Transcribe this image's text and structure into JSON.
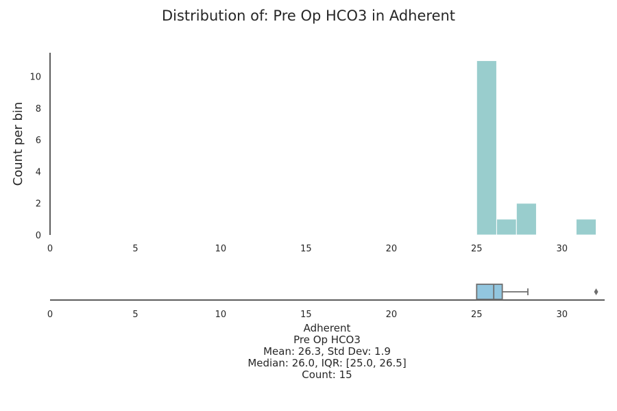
{
  "chart_data": [
    {
      "type": "histogram",
      "title": "Distribution of: Pre Op HCO3 in Adherent",
      "ylabel": "Count per bin",
      "xlim": [
        0,
        32.5
      ],
      "ylim": [
        0,
        11.5
      ],
      "x_ticks": [
        0,
        5,
        10,
        15,
        20,
        25,
        30
      ],
      "y_ticks": [
        0,
        2,
        4,
        6,
        8,
        10
      ],
      "bins": [
        {
          "start": 25.0,
          "end": 26.17,
          "count": 11
        },
        {
          "start": 26.17,
          "end": 27.33,
          "count": 1
        },
        {
          "start": 27.33,
          "end": 28.5,
          "count": 2
        },
        {
          "start": 28.5,
          "end": 29.67,
          "count": 0
        },
        {
          "start": 29.67,
          "end": 30.83,
          "count": 0
        },
        {
          "start": 30.83,
          "end": 32.0,
          "count": 1
        }
      ],
      "color": "#99cdcd",
      "grid": false
    },
    {
      "type": "box",
      "xlim": [
        0,
        32.5
      ],
      "x_ticks": [
        0,
        5,
        10,
        15,
        20,
        25,
        30
      ],
      "box": {
        "q1": 25.0,
        "median": 26.0,
        "q3": 26.5,
        "whisker_low": 25.0,
        "whisker_high": 28.0,
        "outliers": [
          32.0
        ]
      },
      "color": "#92c6df",
      "grid": false
    }
  ],
  "stats": {
    "lines": [
      "Adherent",
      "Pre Op HCO3",
      "Mean: 26.3, Std Dev: 1.9",
      "Median: 26.0, IQR: [25.0, 26.5]",
      "Count: 15"
    ]
  }
}
